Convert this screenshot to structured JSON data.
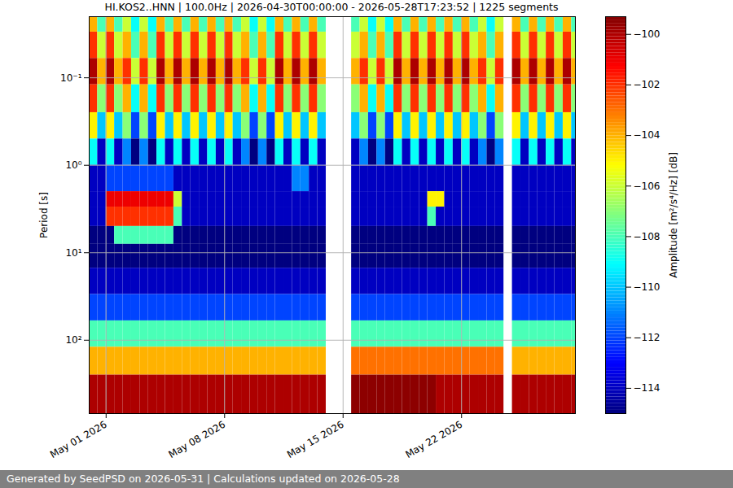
{
  "chart_data": {
    "type": "heatmap",
    "title": "HI.KOS2..HNN | 100.0Hz | 2026-04-30T00:00:00 - 2026-05-28T17:23:52 | 1225 segments",
    "caption": "Generated by SeedPSD on 2026-05-31 | Calculations updated on 2026-05-28",
    "y_label": "Period [s]",
    "log": "y",
    "grid": true,
    "xlim": [
      "2026-04-30T00:00:00",
      "2026-05-28T17:23:52"
    ],
    "ylim": [
      0.02,
      690
    ],
    "xticks": [
      {
        "value": "2026-05-01",
        "label": "May 01 2026"
      },
      {
        "value": "2026-05-08",
        "label": "May 08 2026"
      },
      {
        "value": "2026-05-15",
        "label": "May 15 2026"
      },
      {
        "value": "2026-05-22",
        "label": "May 22 2026"
      }
    ],
    "yticks": [
      {
        "value": 0.1,
        "label": "10⁻¹"
      },
      {
        "value": 1,
        "label": "10⁰"
      },
      {
        "value": 10,
        "label": "10¹"
      },
      {
        "value": 100,
        "label": "10²"
      }
    ],
    "colorbar": {
      "label": "Amplitude [m²/s⁴/Hz] [dB]",
      "range": [
        -115,
        -99.3
      ],
      "ticks": [
        -114,
        -112,
        -110,
        -108,
        -106,
        -104,
        -102,
        -100
      ]
    },
    "x_edges": [
      "2026-04-30T00:00:00",
      "2026-04-30T12:00:00",
      "2026-05-01T00:00:00",
      "2026-05-01T12:00:00",
      "2026-05-02T00:00:00",
      "2026-05-02T12:00:00",
      "2026-05-03T00:00:00",
      "2026-05-03T12:00:00",
      "2026-05-04T00:00:00",
      "2026-05-04T12:00:00",
      "2026-05-05T00:00:00",
      "2026-05-05T12:00:00",
      "2026-05-06T00:00:00",
      "2026-05-06T12:00:00",
      "2026-05-07T00:00:00",
      "2026-05-07T12:00:00",
      "2026-05-08T00:00:00",
      "2026-05-08T12:00:00",
      "2026-05-09T00:00:00",
      "2026-05-09T12:00:00",
      "2026-05-10T00:00:00",
      "2026-05-10T12:00:00",
      "2026-05-11T00:00:00",
      "2026-05-11T12:00:00",
      "2026-05-12T00:00:00",
      "2026-05-12T12:00:00",
      "2026-05-13T00:00:00",
      "2026-05-13T12:00:00",
      "2026-05-14T00:00:00",
      "2026-05-14T12:00:00",
      "2026-05-15T00:00:00",
      "2026-05-15T12:00:00",
      "2026-05-16T00:00:00",
      "2026-05-16T12:00:00",
      "2026-05-17T00:00:00",
      "2026-05-17T12:00:00",
      "2026-05-18T00:00:00",
      "2026-05-18T12:00:00",
      "2026-05-19T00:00:00",
      "2026-05-19T12:00:00",
      "2026-05-20T00:00:00",
      "2026-05-20T12:00:00",
      "2026-05-21T00:00:00",
      "2026-05-21T12:00:00",
      "2026-05-22T00:00:00",
      "2026-05-22T12:00:00",
      "2026-05-23T00:00:00",
      "2026-05-23T12:00:00",
      "2026-05-24T00:00:00",
      "2026-05-24T12:00:00",
      "2026-05-25T00:00:00",
      "2026-05-25T12:00:00",
      "2026-05-26T00:00:00",
      "2026-05-26T12:00:00",
      "2026-05-27T00:00:00",
      "2026-05-27T12:00:00",
      "2026-05-28T00:00:00",
      "2026-05-28T12:00:00",
      "2026-05-28T17:23:52"
    ],
    "y_edges": [
      0.02,
      0.03,
      0.06,
      0.12,
      0.25,
      0.5,
      1,
      2,
      3,
      5,
      8,
      15,
      30,
      60,
      120,
      250,
      690
    ],
    "values": [
      [
        -104,
        -108,
        -104,
        -108,
        -106,
        -109,
        -106,
        -109,
        -104,
        -108,
        -104,
        -108,
        -104,
        -108,
        -104,
        -108,
        -104,
        -108,
        -106,
        -109,
        -106,
        -109,
        -104,
        -108,
        -104,
        -108,
        -104,
        -108,
        null,
        null,
        null,
        -108,
        -106,
        -109,
        -106,
        -109,
        -104,
        -108,
        -104,
        -108,
        -104,
        -108,
        -104,
        -108,
        -104,
        -108,
        -106,
        -109,
        -106,
        null,
        -104,
        -108,
        -104,
        -108,
        -104,
        -108,
        -104,
        -108
      ],
      [
        -102,
        -106,
        -102,
        -106,
        -104,
        -108,
        -104,
        -108,
        -102,
        -106,
        -102,
        -106,
        -102,
        -106,
        -102,
        -106,
        -102,
        -106,
        -104,
        -108,
        -104,
        -108,
        -102,
        -106,
        -102,
        -106,
        -102,
        -106,
        null,
        null,
        null,
        -106,
        -104,
        -108,
        -104,
        -108,
        -102,
        -106,
        -102,
        -106,
        -102,
        -106,
        -102,
        -106,
        -102,
        -106,
        -104,
        -108,
        -104,
        null,
        -102,
        -106,
        -102,
        -106,
        -102,
        -106,
        -102,
        -106
      ],
      [
        -100,
        -104,
        -100,
        -104,
        -102,
        -106,
        -102,
        -106,
        -100,
        -104,
        -100,
        -104,
        -100,
        -104,
        -100,
        -104,
        -100,
        -104,
        -102,
        -106,
        -102,
        -106,
        -100,
        -104,
        -100,
        -104,
        -100,
        -104,
        null,
        null,
        null,
        -104,
        -102,
        -106,
        -102,
        -106,
        -100,
        -104,
        -100,
        -104,
        -100,
        -104,
        -100,
        -104,
        -100,
        -104,
        -102,
        -106,
        -102,
        null,
        -100,
        -104,
        -100,
        -104,
        -100,
        -104,
        -100,
        -104
      ],
      [
        -102,
        -107,
        -102,
        -107,
        -104,
        -109,
        -104,
        -109,
        -102,
        -107,
        -102,
        -107,
        -102,
        -107,
        -102,
        -107,
        -102,
        -107,
        -104,
        -109,
        -104,
        -109,
        -102,
        -107,
        -102,
        -107,
        -102,
        -107,
        null,
        null,
        null,
        -107,
        -104,
        -109,
        -104,
        -109,
        -102,
        -107,
        -102,
        -107,
        -102,
        -107,
        -102,
        -107,
        -102,
        -107,
        -104,
        -109,
        -104,
        null,
        -102,
        -107,
        -102,
        -107,
        -102,
        -107,
        -102,
        -107
      ],
      [
        -105,
        -110,
        -105,
        -110,
        -107,
        -112,
        -107,
        -112,
        -105,
        -110,
        -105,
        -110,
        -105,
        -110,
        -105,
        -110,
        -105,
        -110,
        -107,
        -112,
        -107,
        -112,
        -105,
        -110,
        -105,
        -110,
        -105,
        -110,
        null,
        null,
        null,
        -110,
        -107,
        -112,
        -107,
        -112,
        -105,
        -110,
        -105,
        -110,
        -105,
        -110,
        -105,
        -110,
        -105,
        -110,
        -107,
        -112,
        -107,
        null,
        -105,
        -110,
        -105,
        -110,
        -105,
        -110,
        -105,
        -110
      ],
      [
        -109,
        -114,
        -109,
        -114,
        -111,
        -115,
        -111,
        -115,
        -109,
        -114,
        -109,
        -114,
        -109,
        -114,
        -109,
        -114,
        -109,
        -114,
        -111,
        -115,
        -111,
        -115,
        -109,
        -114,
        -109,
        -114,
        -109,
        -114,
        null,
        null,
        null,
        -114,
        -111,
        -115,
        -111,
        -115,
        -109,
        -114,
        -109,
        -114,
        -109,
        -114,
        -109,
        -114,
        -109,
        -114,
        -111,
        -115,
        -111,
        null,
        -109,
        -114,
        -109,
        -114,
        -109,
        -114,
        -109,
        -114
      ],
      [
        -114,
        -114,
        -112,
        -112,
        -112,
        -112,
        -112,
        -112,
        -112,
        -112,
        -114,
        -114,
        -114,
        -114,
        -114,
        -114,
        -114,
        -114,
        -114,
        -114,
        -114,
        -114,
        -114,
        -114,
        -111,
        -111,
        -114,
        -114,
        null,
        null,
        null,
        -114,
        -114,
        -114,
        -114,
        -114,
        -114,
        -114,
        -114,
        -114,
        -114,
        -114,
        -114,
        -114,
        -114,
        -114,
        -114,
        -114,
        -114,
        null,
        -114,
        -114,
        -114,
        -114,
        -114,
        -114,
        -114,
        -114
      ],
      [
        -114,
        -114,
        -101,
        -101,
        -101,
        -101,
        -101,
        -101,
        -101,
        -101,
        -106,
        -114,
        -114,
        -114,
        -114,
        -114,
        -114,
        -114,
        -114,
        -114,
        -114,
        -114,
        -114,
        -114,
        -114,
        -114,
        -114,
        -114,
        null,
        null,
        null,
        -114,
        -114,
        -114,
        -114,
        -114,
        -114,
        -114,
        -114,
        -114,
        -105,
        -105,
        -114,
        -114,
        -114,
        -114,
        -114,
        -114,
        -114,
        null,
        -114,
        -114,
        -114,
        -114,
        -114,
        -114,
        -114,
        -114
      ],
      [
        -114,
        -114,
        -102,
        -102,
        -102,
        -102,
        -102,
        -102,
        -102,
        -102,
        -108,
        -114,
        -114,
        -114,
        -114,
        -114,
        -114,
        -114,
        -114,
        -114,
        -114,
        -114,
        -114,
        -114,
        -114,
        -114,
        -114,
        -114,
        null,
        null,
        null,
        -114,
        -114,
        -114,
        -114,
        -114,
        -114,
        -114,
        -114,
        -114,
        -108,
        -114,
        -114,
        -114,
        -114,
        -114,
        -114,
        -114,
        -114,
        null,
        -114,
        -114,
        -114,
        -114,
        -114,
        -114,
        -114,
        -114
      ],
      [
        -115,
        -115,
        -115,
        -108,
        -108,
        -108,
        -108,
        -108,
        -108,
        -108,
        -115,
        -115,
        -115,
        -115,
        -115,
        -115,
        -115,
        -115,
        -115,
        -115,
        -115,
        -115,
        -115,
        -115,
        -115,
        -115,
        -115,
        -115,
        null,
        null,
        null,
        -115,
        -115,
        -115,
        -115,
        -115,
        -115,
        -115,
        -115,
        -115,
        -115,
        -115,
        -115,
        -115,
        -115,
        -115,
        -115,
        -115,
        -115,
        null,
        -115,
        -115,
        -115,
        -115,
        -115,
        -115,
        -115,
        -115
      ],
      [
        -115,
        -115,
        -115,
        -115,
        -115,
        -115,
        -115,
        -115,
        -115,
        -115,
        -115,
        -115,
        -115,
        -115,
        -115,
        -115,
        -115,
        -115,
        -115,
        -115,
        -115,
        -115,
        -115,
        -115,
        -115,
        -115,
        -115,
        -115,
        null,
        null,
        null,
        -115,
        -115,
        -115,
        -115,
        -115,
        -115,
        -115,
        -115,
        -115,
        -115,
        -115,
        -115,
        -115,
        -115,
        -115,
        -115,
        -115,
        -115,
        null,
        -115,
        -115,
        -115,
        -115,
        -115,
        -115,
        -115,
        -115
      ],
      [
        -114,
        -114,
        -114,
        -114,
        -114,
        -114,
        -114,
        -114,
        -114,
        -114,
        -114,
        -114,
        -114,
        -114,
        -114,
        -114,
        -114,
        -114,
        -114,
        -114,
        -114,
        -114,
        -114,
        -114,
        -114,
        -114,
        -114,
        -114,
        null,
        null,
        null,
        -114,
        -114,
        -114,
        -114,
        -114,
        -114,
        -114,
        -114,
        -114,
        -114,
        -114,
        -114,
        -114,
        -114,
        -114,
        -114,
        -114,
        -114,
        null,
        -114,
        -114,
        -114,
        -114,
        -114,
        -114,
        -114,
        -114
      ],
      [
        -112,
        -112,
        -112,
        -112,
        -112,
        -112,
        -112,
        -112,
        -112,
        -112,
        -112,
        -112,
        -112,
        -112,
        -112,
        -112,
        -112,
        -112,
        -112,
        -112,
        -112,
        -112,
        -112,
        -112,
        -112,
        -112,
        -112,
        -112,
        null,
        null,
        null,
        -112,
        -112,
        -112,
        -112,
        -112,
        -112,
        -112,
        -112,
        -112,
        -112,
        -112,
        -112,
        -112,
        -112,
        -112,
        -112,
        -112,
        -112,
        null,
        -112,
        -112,
        -112,
        -112,
        -112,
        -112,
        -112,
        -112
      ],
      [
        -108,
        -108,
        -108,
        -108,
        -108,
        -108,
        -108,
        -108,
        -108,
        -108,
        -108,
        -108,
        -108,
        -108,
        -108,
        -108,
        -108,
        -108,
        -108,
        -108,
        -108,
        -108,
        -108,
        -108,
        -108,
        -108,
        -108,
        -108,
        null,
        null,
        null,
        -108,
        -108,
        -108,
        -108,
        -108,
        -108,
        -108,
        -108,
        -108,
        -108,
        -108,
        -108,
        -108,
        -108,
        -108,
        -108,
        -108,
        -108,
        null,
        -108,
        -108,
        -108,
        -108,
        -108,
        -108,
        -108,
        -108
      ],
      [
        -104,
        -104,
        -104,
        -104,
        -104,
        -104,
        -104,
        -104,
        -104,
        -104,
        -104,
        -104,
        -104,
        -104,
        -104,
        -104,
        -104,
        -104,
        -104,
        -104,
        -104,
        -104,
        -104,
        -104,
        -104,
        -104,
        -104,
        -104,
        null,
        null,
        null,
        -103,
        -103,
        -103,
        -103,
        -103,
        -103,
        -103,
        -103,
        -103,
        -103,
        -103,
        -103,
        -103,
        -103,
        -103,
        -103,
        -103,
        -103,
        null,
        -104,
        -104,
        -104,
        -104,
        -104,
        -104,
        -104,
        -104
      ],
      [
        -100,
        -100,
        -100,
        -100,
        -100,
        -100,
        -100,
        -100,
        -100,
        -100,
        -100,
        -100,
        -100,
        -100,
        -100,
        -100,
        -100,
        -100,
        -100,
        -100,
        -100,
        -100,
        -100,
        -100,
        -100,
        -100,
        -100,
        -100,
        null,
        null,
        null,
        -99.5,
        -99.5,
        -99.5,
        -99.5,
        -99.5,
        -99.5,
        -99.5,
        -99.5,
        -99.5,
        -99.5,
        -100,
        -100,
        -100,
        -100,
        -100,
        -100,
        -100,
        -100,
        null,
        -100,
        -100,
        -100,
        -100,
        -100,
        -100,
        -100,
        -100
      ]
    ]
  }
}
